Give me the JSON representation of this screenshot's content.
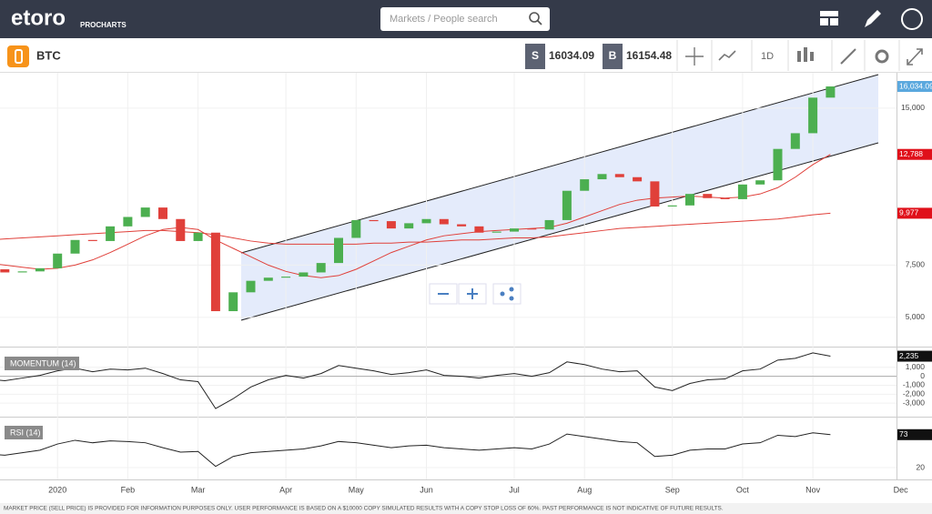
{
  "header": {
    "logo": "etoro",
    "product": "PROCHARTS",
    "search_placeholder": "Markets / People search"
  },
  "toolbar": {
    "instrument": "BTC",
    "sell_label": "S",
    "sell": 16034.09,
    "buy_label": "B",
    "buy": 16154.48,
    "interval": "1D"
  },
  "chart_data": [
    {
      "type": "candlestick",
      "up_color": "#4caf50",
      "down_color": "#e0403a",
      "categories": [
        null,
        null,
        null,
        null,
        "2020",
        null,
        null,
        null,
        "Feb",
        null,
        null,
        null,
        "Mar",
        null,
        null,
        null,
        null,
        "Apr",
        null,
        null,
        null,
        "May",
        null,
        null,
        null,
        "Jun",
        null,
        null,
        null,
        null,
        "Jul",
        null,
        null,
        null,
        "Aug",
        null,
        null,
        null,
        null,
        "Sep",
        null,
        null,
        null,
        "Oct",
        null,
        null,
        null,
        "Nov",
        null,
        null,
        null,
        null,
        "Dec"
      ],
      "values": [
        7300,
        7150,
        7200,
        7350,
        8050,
        8700,
        8650,
        9350,
        9800,
        10250,
        9700,
        8650,
        9050,
        5300,
        6200,
        6750,
        6900,
        6950,
        7150,
        7600,
        8800,
        9650,
        9600,
        9250,
        9500,
        9700,
        9450,
        9350,
        9050,
        9100,
        9250,
        9200,
        9650,
        11050,
        11600,
        11850,
        11700,
        11500,
        10300,
        10350,
        10900,
        10700,
        10650,
        11350,
        11550,
        13050,
        13800,
        15500,
        16034.09,
        null,
        null,
        null,
        null
      ],
      "series": [
        {
          "color": "#e0403a",
          "values": [
            7600,
            7500,
            7400,
            7300,
            7350,
            7500,
            7750,
            8100,
            8500,
            8900,
            9200,
            9300,
            9200,
            8700,
            8300,
            7900,
            7500,
            7200,
            7000,
            6900,
            7000,
            7300,
            7700,
            8100,
            8400,
            8700,
            8900,
            9000,
            9100,
            9150,
            9200,
            9250,
            9300,
            9500,
            9800,
            10100,
            10400,
            10600,
            10700,
            10750,
            10800,
            10750,
            10700,
            10750,
            10900,
            11200,
            11700,
            12300,
            12788,
            null,
            null,
            null,
            null
          ]
        },
        {
          "color": "#e0403a",
          "values": [
            8700,
            8750,
            8800,
            8850,
            8900,
            8950,
            9000,
            9050,
            9100,
            9150,
            9150,
            9100,
            9050,
            8950,
            8800,
            8650,
            8550,
            8500,
            8500,
            8500,
            8500,
            8500,
            8550,
            8550,
            8600,
            8600,
            8650,
            8700,
            8700,
            8750,
            8800,
            8800,
            8850,
            8950,
            9050,
            9150,
            9250,
            9300,
            9350,
            9400,
            9450,
            9500,
            9550,
            9600,
            9650,
            9700,
            9800,
            9900,
            9977,
            null,
            null,
            null,
            null
          ]
        }
      ],
      "ylim": [
        3650,
        16600
      ],
      "yticks": [
        {
          "value": 5000,
          "label": "5,000"
        },
        {
          "value": 7500,
          "label": "7,500"
        },
        {
          "value": 15000,
          "label": "15,000"
        }
      ],
      "price_tags": [
        {
          "value": 16034.09,
          "label": "16,034.09",
          "color": "#5aa8de"
        },
        {
          "value": 12788,
          "label": "12,788",
          "color": "#e0101a"
        },
        {
          "value": 9977,
          "label": "9,977",
          "color": "#e0101a"
        }
      ]
    },
    {
      "type": "line",
      "title": "MOMENTUM (14)",
      "color": "#222222",
      "values": [
        -300,
        -500,
        -200,
        100,
        600,
        900,
        500,
        800,
        700,
        900,
        300,
        -400,
        -600,
        -3600,
        -2500,
        -1200,
        -400,
        100,
        -200,
        300,
        1200,
        900,
        600,
        200,
        400,
        700,
        100,
        0,
        -200,
        100,
        300,
        0,
        400,
        1600,
        1300,
        800,
        500,
        600,
        -1200,
        -1600,
        -800,
        -400,
        -300,
        600,
        800,
        1800,
        2000,
        2600,
        2235,
        null,
        null,
        null,
        null
      ],
      "ylim": [
        -4400,
        3100
      ],
      "yticks": [
        {
          "value": 1000,
          "label": "1,000"
        },
        0,
        {
          "value": -1000,
          "label": "-1,000"
        },
        {
          "value": -2000,
          "label": "-2,000"
        },
        {
          "value": -3000,
          "label": "-3,000"
        }
      ],
      "price_tags": [
        {
          "value": 2235,
          "label": "2,235",
          "color": "#111111"
        }
      ]
    },
    {
      "type": "line",
      "title": "RSI (14)",
      "color": "#222222",
      "values": [
        42,
        40,
        44,
        48,
        58,
        64,
        60,
        63,
        62,
        60,
        52,
        45,
        46,
        22,
        38,
        44,
        46,
        48,
        50,
        55,
        62,
        60,
        56,
        52,
        55,
        56,
        52,
        50,
        48,
        50,
        52,
        50,
        58,
        74,
        70,
        66,
        62,
        60,
        38,
        40,
        48,
        50,
        50,
        58,
        60,
        72,
        70,
        76,
        73,
        null,
        null,
        null,
        null
      ],
      "ylim": [
        4,
        99
      ],
      "yticks": [
        20
      ],
      "price_tags": [
        {
          "value": 73,
          "label": "73",
          "color": "#111111"
        }
      ]
    }
  ],
  "footer": "MARKET PRICE (SELL PRICE) IS PROVIDED FOR INFORMATION PURPOSES ONLY. USER PERFORMANCE IS BASED ON A $10000 COPY SIMULATED RESULTS WITH A COPY STOP LOSS OF 60%. PAST PERFORMANCE IS NOT INDICATIVE OF FUTURE RESULTS."
}
